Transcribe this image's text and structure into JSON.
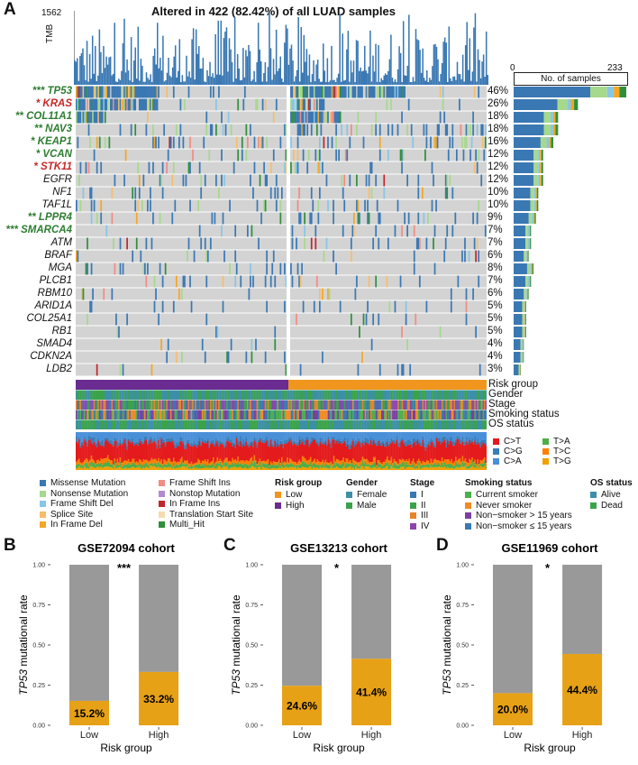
{
  "panels": {
    "a": "A",
    "b": "B",
    "c": "C",
    "d": "D"
  },
  "oncoplot": {
    "title": "Altered in 422 (82.42%) of all LUAD samples",
    "tmb_label": "TMB",
    "tmb_max": "1562",
    "samples_axis": {
      "label": "No. of samples",
      "min": "0",
      "max": "233"
    },
    "genes": [
      {
        "prefix": "***",
        "name": "TP53",
        "color": "green",
        "pct": "46%",
        "count": 233,
        "low_fraction": 0.41
      },
      {
        "prefix": "*",
        "name": "KRAS",
        "color": "red",
        "pct": "26%",
        "count": 133,
        "low_fraction": 0.7
      },
      {
        "prefix": "**",
        "name": "COL11A1",
        "color": "green",
        "pct": "18%",
        "count": 92,
        "low_fraction": 0.35
      },
      {
        "prefix": "**",
        "name": "NAV3",
        "color": "green",
        "pct": "18%",
        "count": 92,
        "low_fraction": 0.36
      },
      {
        "prefix": "*",
        "name": "KEAP1",
        "color": "green",
        "pct": "16%",
        "count": 82,
        "low_fraction": 0.37
      },
      {
        "prefix": "*",
        "name": "VCAN",
        "color": "green",
        "pct": "12%",
        "count": 61,
        "low_fraction": 0.33
      },
      {
        "prefix": "*",
        "name": "STK11",
        "color": "red",
        "pct": "12%",
        "count": 61,
        "low_fraction": 0.62
      },
      {
        "prefix": "",
        "name": "EGFR",
        "color": "black",
        "pct": "12%",
        "count": 61,
        "low_fraction": 0.5
      },
      {
        "prefix": "",
        "name": "NF1",
        "color": "black",
        "pct": "10%",
        "count": 51,
        "low_fraction": 0.5
      },
      {
        "prefix": "",
        "name": "TAF1L",
        "color": "black",
        "pct": "10%",
        "count": 51,
        "low_fraction": 0.5
      },
      {
        "prefix": "**",
        "name": "LPPR4",
        "color": "green",
        "pct": "9%",
        "count": 46,
        "low_fraction": 0.35
      },
      {
        "prefix": "***",
        "name": "SMARCA4",
        "color": "green",
        "pct": "7%",
        "count": 36,
        "low_fraction": 0.3
      },
      {
        "prefix": "",
        "name": "ATM",
        "color": "black",
        "pct": "7%",
        "count": 36,
        "low_fraction": 0.5
      },
      {
        "prefix": "",
        "name": "BRAF",
        "color": "black",
        "pct": "6%",
        "count": 31,
        "low_fraction": 0.5
      },
      {
        "prefix": "",
        "name": "MGA",
        "color": "black",
        "pct": "8%",
        "count": 41,
        "low_fraction": 0.5
      },
      {
        "prefix": "",
        "name": "PLCB1",
        "color": "black",
        "pct": "7%",
        "count": 36,
        "low_fraction": 0.5
      },
      {
        "prefix": "",
        "name": "RBM10",
        "color": "black",
        "pct": "6%",
        "count": 31,
        "low_fraction": 0.5
      },
      {
        "prefix": "",
        "name": "ARID1A",
        "color": "black",
        "pct": "5%",
        "count": 26,
        "low_fraction": 0.5
      },
      {
        "prefix": "",
        "name": "COL25A1",
        "color": "black",
        "pct": "5%",
        "count": 26,
        "low_fraction": 0.5
      },
      {
        "prefix": "",
        "name": "RB1",
        "color": "black",
        "pct": "5%",
        "count": 26,
        "low_fraction": 0.5
      },
      {
        "prefix": "",
        "name": "SMAD4",
        "color": "black",
        "pct": "4%",
        "count": 21,
        "low_fraction": 0.5
      },
      {
        "prefix": "",
        "name": "CDKN2A",
        "color": "black",
        "pct": "4%",
        "count": 21,
        "low_fraction": 0.5
      },
      {
        "prefix": "",
        "name": "LDB2",
        "color": "black",
        "pct": "3%",
        "count": 15,
        "low_fraction": 0.5
      }
    ],
    "tracks": [
      "Risk group",
      "Gender",
      "Stage",
      "Smoking status",
      "OS status"
    ],
    "titv": [
      {
        "label": "C>T",
        "color": "#e41a1c"
      },
      {
        "label": "T>A",
        "color": "#4daf4a"
      },
      {
        "label": "C>G",
        "color": "#377eb8"
      },
      {
        "label": "T>C",
        "color": "#ff7f00"
      },
      {
        "label": "C>A",
        "color": "#4a90d9"
      },
      {
        "label": "T>G",
        "color": "#f0a000"
      }
    ]
  },
  "legends": {
    "variant": [
      {
        "label": "Missense Mutation",
        "color": "#3a78b3"
      },
      {
        "label": "Nonsense Mutation",
        "color": "#a6d98b"
      },
      {
        "label": "Frame Shift Del",
        "color": "#87c6e6"
      },
      {
        "label": "Splice Site",
        "color": "#f6bd6b"
      },
      {
        "label": "In Frame Del",
        "color": "#f5a623"
      },
      {
        "label": "Frame Shift Ins",
        "color": "#f28b82"
      },
      {
        "label": "Nonstop Mutation",
        "color": "#b28ad1"
      },
      {
        "label": "In Frame Ins",
        "color": "#c0262a"
      },
      {
        "label": "Translation Start Site",
        "color": "#f5dcb0"
      },
      {
        "label": "Multi_Hit",
        "color": "#2f8f3a"
      }
    ],
    "risk": {
      "title": "Risk group",
      "items": [
        {
          "label": "Low",
          "color": "#f0961e"
        },
        {
          "label": "High",
          "color": "#6a2c91"
        }
      ]
    },
    "gender": {
      "title": "Gender",
      "items": [
        {
          "label": "Female",
          "color": "#3d8fa8"
        },
        {
          "label": "Male",
          "color": "#3aa34a"
        }
      ]
    },
    "stage": {
      "title": "Stage",
      "items": [
        {
          "label": "I",
          "color": "#3a78b3"
        },
        {
          "label": "II",
          "color": "#3aa34a"
        },
        {
          "label": "III",
          "color": "#e8832a"
        },
        {
          "label": "IV",
          "color": "#8e44ad"
        }
      ]
    },
    "smoking": {
      "title": "Smoking status",
      "items": [
        {
          "label": "Current smoker",
          "color": "#4caf50"
        },
        {
          "label": "Never smoker",
          "color": "#f08a24"
        },
        {
          "label": "Non−smoker > 15 years",
          "color": "#7b3fa0"
        },
        {
          "label": "Non−smoker ≤ 15 years",
          "color": "#3a78b3"
        }
      ]
    },
    "os": {
      "title": "OS status",
      "items": [
        {
          "label": "Alive",
          "color": "#3d8fa8"
        },
        {
          "label": "Dead",
          "color": "#3aa34a"
        }
      ]
    }
  },
  "chart_data": [
    {
      "type": "bar",
      "stacked": true,
      "title": "GSE72094 cohort",
      "categories": [
        "Low",
        "High"
      ],
      "values": [
        0.152,
        0.332
      ],
      "labels": [
        "15.2%",
        "33.2%"
      ],
      "significance": "***",
      "xlabel": "Risk group",
      "ylabel_italic": "TP53",
      "ylabel_rest": " mutational rate",
      "ylim": [
        0,
        1
      ],
      "yticks": [
        "0.00",
        "0.25",
        "0.50",
        "0.75",
        "1.00"
      ],
      "colors": {
        "mutated": "#e6a117",
        "other": "#999999"
      }
    },
    {
      "type": "bar",
      "stacked": true,
      "title": "GSE13213 cohort",
      "categories": [
        "Low",
        "High"
      ],
      "values": [
        0.246,
        0.414
      ],
      "labels": [
        "24.6%",
        "41.4%"
      ],
      "significance": "*",
      "xlabel": "Risk group",
      "ylabel_italic": "TP53",
      "ylabel_rest": " mutational rate",
      "ylim": [
        0,
        1
      ],
      "yticks": [
        "0.00",
        "0.25",
        "0.50",
        "0.75",
        "1.00"
      ],
      "colors": {
        "mutated": "#e6a117",
        "other": "#999999"
      }
    },
    {
      "type": "bar",
      "stacked": true,
      "title": "GSE11969 cohort",
      "categories": [
        "Low",
        "High"
      ],
      "values": [
        0.2,
        0.444
      ],
      "labels": [
        "20.0%",
        "44.4%"
      ],
      "significance": "*",
      "xlabel": "Risk group",
      "ylabel_italic": "TP53",
      "ylabel_rest": " mutational rate",
      "ylim": [
        0,
        1
      ],
      "yticks": [
        "0.00",
        "0.25",
        "0.50",
        "0.75",
        "1.00"
      ],
      "colors": {
        "mutated": "#e6a117",
        "other": "#999999"
      }
    }
  ]
}
